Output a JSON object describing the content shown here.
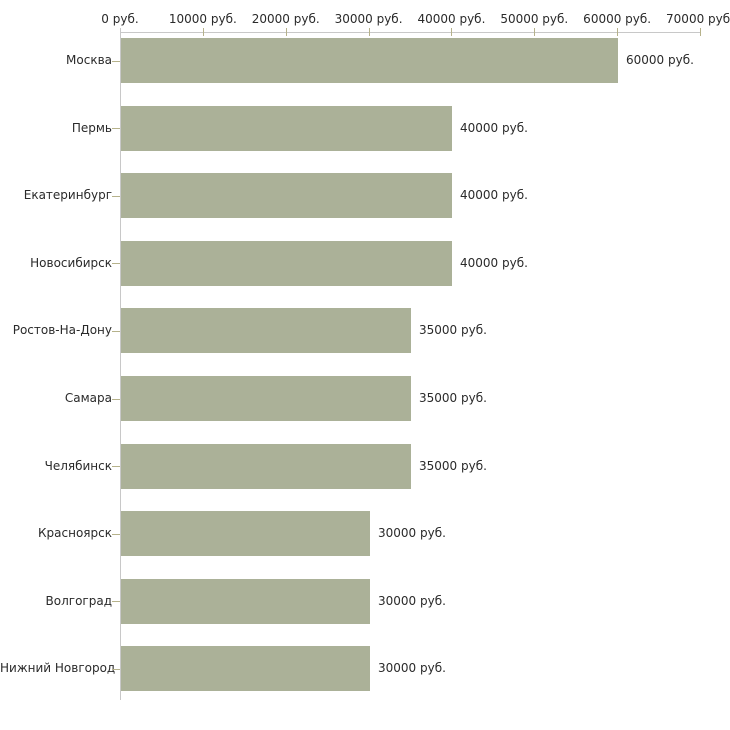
{
  "chart_data": {
    "type": "bar",
    "orientation": "horizontal",
    "title": "",
    "categories": [
      "Москва",
      "Пермь",
      "Екатеринбург",
      "Новосибирск",
      "Ростов-На-Дону",
      "Самара",
      "Челябинск",
      "Красноярск",
      "Волгоград",
      "Нижний Новгород"
    ],
    "values": [
      60000,
      40000,
      40000,
      40000,
      35000,
      35000,
      35000,
      30000,
      30000,
      30000
    ],
    "bar_value_labels": [
      "60000 руб.",
      "40000 руб.",
      "40000 руб.",
      "40000 руб.",
      "35000 руб.",
      "35000 руб.",
      "35000 руб.",
      "30000 руб.",
      "30000 руб.",
      "30000 руб."
    ],
    "x_axis": {
      "position": "top",
      "min": 0,
      "max": 70000,
      "tick_values": [
        0,
        10000,
        20000,
        30000,
        40000,
        50000,
        60000,
        70000
      ],
      "tick_labels": [
        "0 руб.",
        "10000 руб.",
        "20000 руб.",
        "30000 руб.",
        "40000 руб.",
        "50000 руб.",
        "60000 руб.",
        "70000 руб."
      ]
    },
    "unit": "руб.",
    "grid": false,
    "legend": false,
    "colors": {
      "bar": "#abb198",
      "axis_line": "#c8c8c8",
      "tick": "#b6b28b",
      "text": "#2a2a2a",
      "background": "#ffffff"
    }
  }
}
